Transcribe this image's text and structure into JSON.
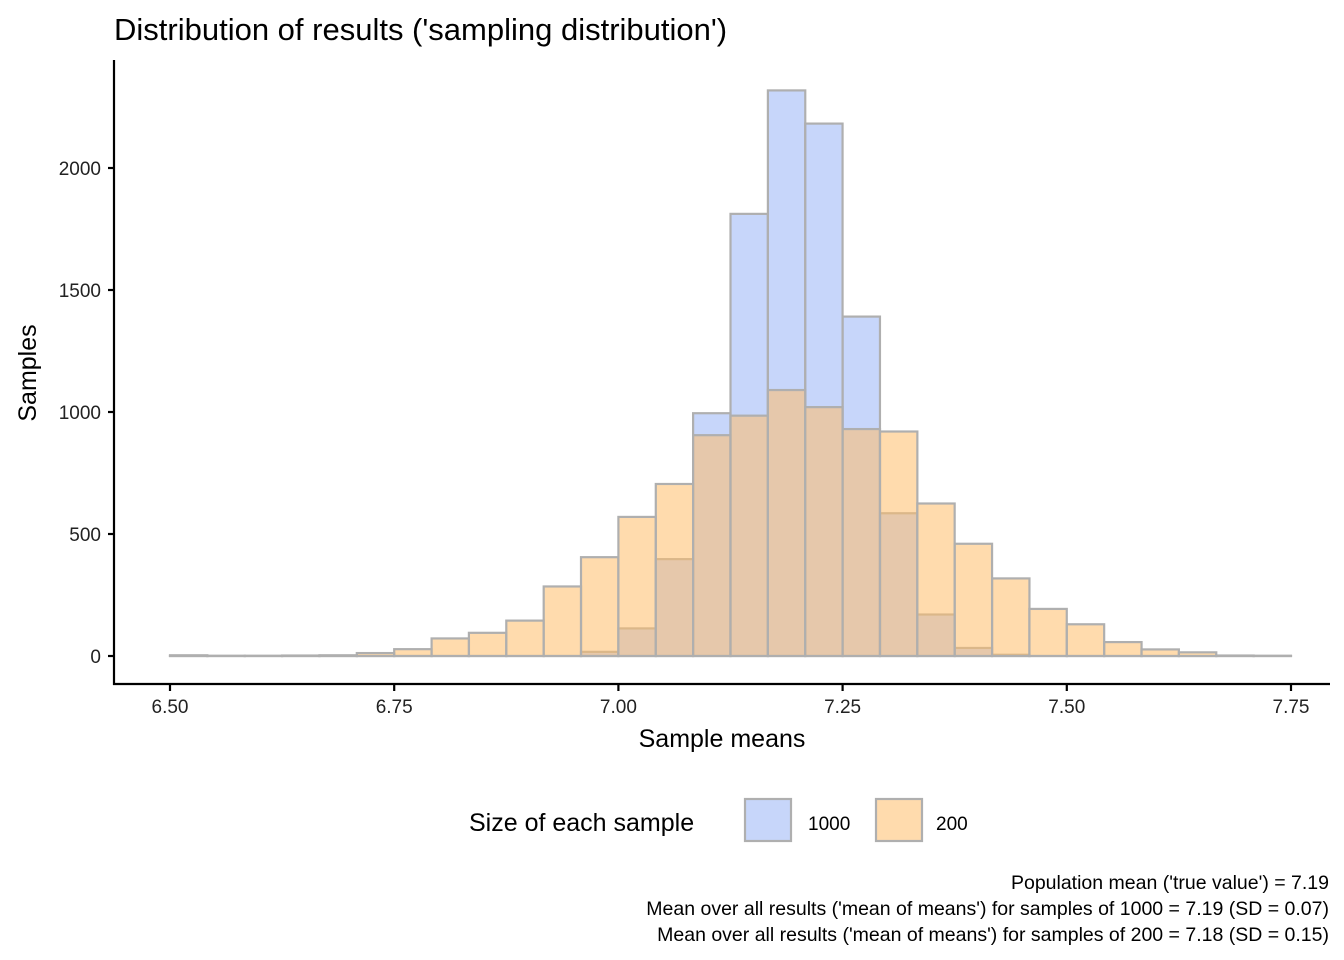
{
  "chart_data": {
    "type": "bar",
    "subtype": "overlapping-histogram",
    "title": "Distribution of results ('sampling distribution')",
    "xlabel": "Sample means",
    "ylabel": "Samples",
    "xlim": [
      6.5,
      7.75
    ],
    "ylim": [
      0,
      2320
    ],
    "x_ticks": [
      6.5,
      6.75,
      7.0,
      7.25,
      7.5,
      7.75
    ],
    "x_tick_labels": [
      "6.50",
      "6.75",
      "7.00",
      "7.25",
      "7.50",
      "7.75"
    ],
    "y_ticks": [
      0,
      500,
      1000,
      1500,
      2000
    ],
    "y_tick_labels": [
      "0",
      "500",
      "1000",
      "1500",
      "2000"
    ],
    "grid": false,
    "bin_width": 0.041667,
    "bin_starts": [
      6.5,
      6.5417,
      6.5833,
      6.625,
      6.6667,
      6.7083,
      6.75,
      6.7917,
      6.8333,
      6.875,
      6.9167,
      6.9583,
      7.0,
      7.0417,
      7.0833,
      7.125,
      7.1667,
      7.2083,
      7.25,
      7.2917,
      7.3333,
      7.375,
      7.4167,
      7.4583,
      7.5,
      7.5417,
      7.5833,
      7.625,
      7.6667,
      7.7083
    ],
    "series": [
      {
        "name": "1000",
        "color": "#99b4f5",
        "values": [
          0,
          0,
          0,
          0,
          0,
          0,
          0,
          0,
          0,
          0,
          0,
          17,
          113,
          397,
          995,
          1812,
          2318,
          2182,
          1391,
          585,
          170,
          33,
          5,
          0,
          0,
          0,
          0,
          0,
          0,
          0
        ]
      },
      {
        "name": "200",
        "color": "#ffbd6a",
        "values": [
          3,
          1,
          1,
          2,
          3,
          12,
          28,
          72,
          95,
          145,
          285,
          405,
          570,
          705,
          905,
          985,
          1090,
          1020,
          930,
          920,
          625,
          460,
          318,
          193,
          130,
          57,
          27,
          15,
          2,
          1
        ]
      }
    ],
    "outline_color": "#afafaf",
    "legend": {
      "title": "Size of each sample",
      "position": "bottom",
      "entries": [
        "1000",
        "200"
      ]
    },
    "caption_lines": [
      "Population mean ('true value') = 7.19",
      "Mean over all results ('mean of means') for samples of 1000 = 7.19 (SD = 0.07)",
      "Mean over all results ('mean of means') for samples of 200 = 7.18 (SD = 0.15)"
    ]
  }
}
